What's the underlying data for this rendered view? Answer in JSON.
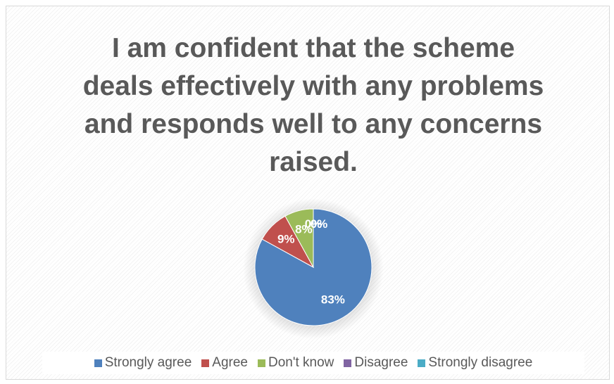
{
  "chart_data": {
    "type": "pie",
    "title": "I am confident that the scheme deals effectively with any problems and responds well to any concerns raised.",
    "categories": [
      "Strongly agree",
      "Agree",
      "Don't know",
      "Disagree",
      "Strongly disagree"
    ],
    "values": [
      83,
      9,
      8,
      0,
      0
    ],
    "value_labels": [
      "83%",
      "9%",
      "8%",
      "0%",
      "0%"
    ],
    "colors": [
      "#4f81bd",
      "#c0504d",
      "#9bbb59",
      "#8064a2",
      "#4bacc6"
    ],
    "legend": "bottom"
  }
}
